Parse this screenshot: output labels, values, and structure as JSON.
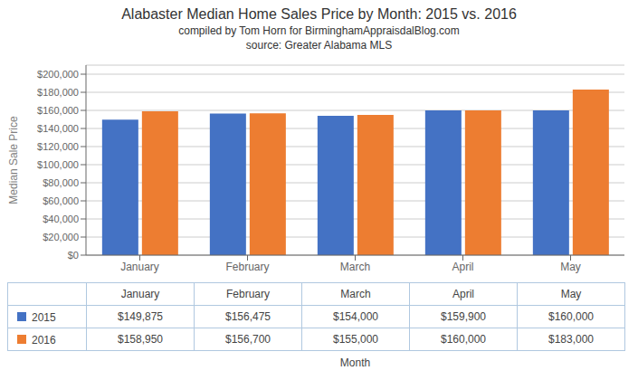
{
  "chart_data": {
    "type": "bar",
    "title": "Alabaster Median Home Sales Price by Month: 2015 vs. 2016",
    "subtitle": [
      "compiled by Tom Horn for BirminghamAppraisdalBlog.com",
      "source: Greater Alabama MLS"
    ],
    "xlabel": "Month",
    "ylabel": "Median Sale Price",
    "categories": [
      "January",
      "February",
      "March",
      "April",
      "May"
    ],
    "series": [
      {
        "name": "2015",
        "color": "#4472C4",
        "values": [
          149875,
          156475,
          154000,
          159900,
          160000
        ],
        "value_labels": [
          "$149,875",
          "$156,475",
          "$154,000",
          "$159,900",
          "$160,000"
        ]
      },
      {
        "name": "2016",
        "color": "#ED7D31",
        "values": [
          158950,
          156700,
          155000,
          160000,
          183000
        ],
        "value_labels": [
          "$158,950",
          "$156,700",
          "$155,000",
          "$160,000",
          "$183,000"
        ]
      }
    ],
    "ylim": [
      0,
      210000
    ],
    "yticks": [
      {
        "value": 0,
        "label": "$0"
      },
      {
        "value": 20000,
        "label": "$20,000"
      },
      {
        "value": 40000,
        "label": "$40,000"
      },
      {
        "value": 60000,
        "label": "$60,000"
      },
      {
        "value": 80000,
        "label": "$80,000"
      },
      {
        "value": 100000,
        "label": "$100,000"
      },
      {
        "value": 120000,
        "label": "$120,000"
      },
      {
        "value": 140000,
        "label": "$140,000"
      },
      {
        "value": 160000,
        "label": "$160,000"
      },
      {
        "value": 180000,
        "label": "$180,000"
      },
      {
        "value": 200000,
        "label": "$200,000"
      }
    ],
    "grid": true
  }
}
